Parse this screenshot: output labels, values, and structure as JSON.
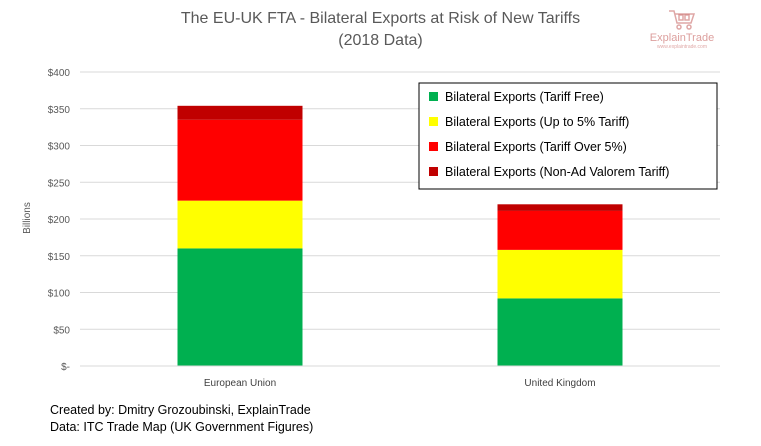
{
  "chart_data": {
    "type": "bar",
    "stacked": true,
    "title": "The EU-UK FTA - Bilateral Exports at Risk of New Tariffs",
    "subtitle": "(2018 Data)",
    "ylabel": "Billions",
    "xlabel": "",
    "ylim": [
      0,
      400
    ],
    "yticks": [
      "$-",
      "$50",
      "$100",
      "$150",
      "$200",
      "$250",
      "$300",
      "$350",
      "$400"
    ],
    "ytick_values": [
      0,
      50,
      100,
      150,
      200,
      250,
      300,
      350,
      400
    ],
    "grid": true,
    "legend_position": "top-right",
    "categories": [
      "European Union",
      "United Kingdom"
    ],
    "series": [
      {
        "name": "Bilateral Exports (Tariff Free)",
        "color": "#00b050",
        "values": [
          160,
          92
        ]
      },
      {
        "name": "Bilateral Exports (Up to 5% Tariff)",
        "color": "#ffff00",
        "values": [
          65,
          66
        ]
      },
      {
        "name": "Bilateral Exports (Tariff Over 5%)",
        "color": "#ff0000",
        "values": [
          110,
          53
        ]
      },
      {
        "name": "Bilateral Exports (Non-Ad Valorem Tariff)",
        "color": "#c00000",
        "values": [
          19,
          9
        ]
      }
    ]
  },
  "logo": {
    "brand": "ExplainTrade",
    "site": "www.explaintrade.com",
    "icon": "shopping-cart-icon"
  },
  "footer": {
    "credit": "Created by: Dmitry Grozoubinski, ExplainTrade",
    "source": "Data: ITC Trade Map (UK Government Figures)"
  }
}
